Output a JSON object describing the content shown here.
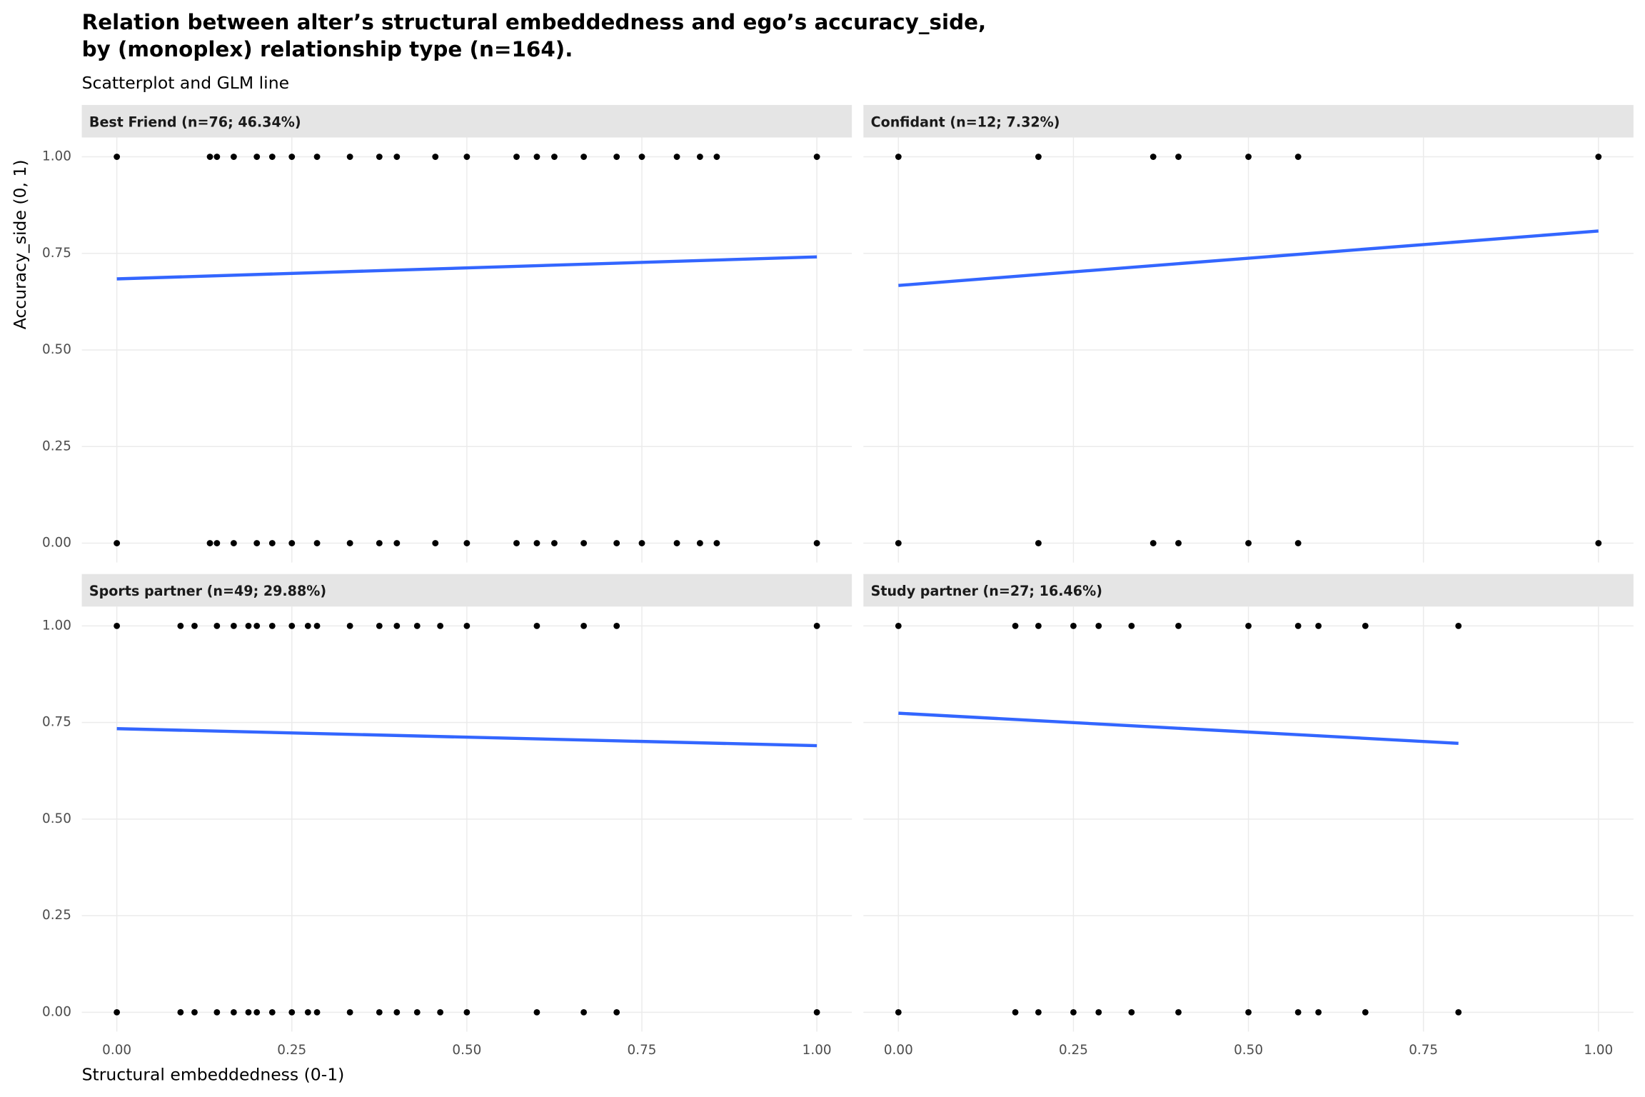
{
  "title": [
    "Relation between alter’s structural embeddedness and ego’s accuracy_side,",
    "by (monoplex) relationship type (n=164)."
  ],
  "subtitle": "Scatterplot and GLM line",
  "x_label": "Structural embeddedness (0-1)",
  "y_label": "Accuracy_side (0, 1)",
  "chart_data": [
    {
      "type": "scatter",
      "title": "Best Friend (n=76; 46.34%)",
      "color": "#000000",
      "x": [
        0,
        0.133,
        0.143,
        0.167,
        0.2,
        0.222,
        0.25,
        0.286,
        0.333,
        0.375,
        0.4,
        0.455,
        0.5,
        0.571,
        0.6,
        0.625,
        0.667,
        0.714,
        0.75,
        0.8,
        0.833,
        0.857,
        1,
        0,
        0.133,
        0.143,
        0.167,
        0.2,
        0.222,
        0.25,
        0.286,
        0.333,
        0.375,
        0.4,
        0.455,
        0.5,
        0.571,
        0.6,
        0.625,
        0.667,
        0.714,
        0.75,
        0.8,
        0.833,
        0.857,
        1
      ],
      "values": [
        1,
        1,
        1,
        1,
        1,
        1,
        1,
        1,
        1,
        1,
        1,
        1,
        1,
        1,
        1,
        1,
        1,
        1,
        1,
        1,
        1,
        1,
        1,
        0,
        0,
        0,
        0,
        0,
        0,
        0,
        0,
        0,
        0,
        0,
        0,
        0,
        0,
        0,
        0,
        0,
        0,
        0,
        0,
        0,
        0,
        0
      ],
      "fit": {
        "x": [
          0,
          1
        ],
        "values": [
          0.684,
          0.741
        ],
        "color": "#3366ff"
      },
      "xlim": [
        -0.05,
        1.05
      ],
      "ylim": [
        -0.05,
        1.05
      ],
      "xticks": [
        0,
        0.25,
        0.5,
        0.75,
        1
      ],
      "yticks": [
        {
          "value": 0,
          "label": "0.00"
        },
        {
          "value": 0.25,
          "label": "0.25"
        },
        {
          "value": 0.5,
          "label": "0.50"
        },
        {
          "value": 0.75,
          "label": "0.75"
        },
        {
          "value": 1,
          "label": "1.00"
        }
      ]
    },
    {
      "type": "scatter",
      "title": "Confidant (n=12; 7.32%)",
      "color": "#000000",
      "x": [
        0,
        0.2,
        0.364,
        0.4,
        0.5,
        0.571,
        1,
        0,
        0.2,
        0.364,
        0.4,
        0.5,
        0.571,
        1
      ],
      "values": [
        1,
        1,
        1,
        1,
        1,
        1,
        1,
        0,
        0,
        0,
        0,
        0,
        0,
        0
      ],
      "fit": {
        "x": [
          0,
          1
        ],
        "values": [
          0.667,
          0.808
        ],
        "color": "#3366ff"
      },
      "xlim": [
        -0.05,
        1.05
      ],
      "ylim": [
        -0.05,
        1.05
      ],
      "xticks": [
        0,
        0.25,
        0.5,
        0.75,
        1
      ],
      "yticks": [
        0,
        0.25,
        0.5,
        0.75,
        1
      ]
    },
    {
      "type": "scatter",
      "title": "Sports partner (n=49; 29.88%)",
      "color": "#000000",
      "x": [
        0,
        0.091,
        0.111,
        0.143,
        0.167,
        0.188,
        0.2,
        0.222,
        0.25,
        0.273,
        0.286,
        0.333,
        0.375,
        0.4,
        0.429,
        0.462,
        0.5,
        0.6,
        0.667,
        0.714,
        1,
        0,
        0.091,
        0.111,
        0.143,
        0.167,
        0.188,
        0.2,
        0.222,
        0.25,
        0.273,
        0.286,
        0.333,
        0.375,
        0.4,
        0.429,
        0.462,
        0.5,
        0.6,
        0.667,
        0.714,
        1
      ],
      "values": [
        1,
        1,
        1,
        1,
        1,
        1,
        1,
        1,
        1,
        1,
        1,
        1,
        1,
        1,
        1,
        1,
        1,
        1,
        1,
        1,
        1,
        0,
        0,
        0,
        0,
        0,
        0,
        0,
        0,
        0,
        0,
        0,
        0,
        0,
        0,
        0,
        0,
        0,
        0,
        0,
        0,
        0
      ],
      "fit": {
        "x": [
          0,
          1
        ],
        "values": [
          0.734,
          0.69
        ],
        "color": "#3366ff"
      },
      "xlim": [
        -0.05,
        1.05
      ],
      "ylim": [
        -0.05,
        1.05
      ],
      "xticks": [
        {
          "value": 0,
          "label": "0.00"
        },
        {
          "value": 0.25,
          "label": "0.25"
        },
        {
          "value": 0.5,
          "label": "0.50"
        },
        {
          "value": 0.75,
          "label": "0.75"
        },
        {
          "value": 1,
          "label": "1.00"
        }
      ],
      "yticks": [
        {
          "value": 0,
          "label": "0.00"
        },
        {
          "value": 0.25,
          "label": "0.25"
        },
        {
          "value": 0.5,
          "label": "0.50"
        },
        {
          "value": 0.75,
          "label": "0.75"
        },
        {
          "value": 1,
          "label": "1.00"
        }
      ]
    },
    {
      "type": "scatter",
      "title": "Study partner (n=27; 16.46%)",
      "color": "#000000",
      "x": [
        0,
        0.167,
        0.2,
        0.25,
        0.286,
        0.333,
        0.4,
        0.5,
        0.571,
        0.6,
        0.667,
        0.8,
        0,
        0.167,
        0.2,
        0.25,
        0.286,
        0.333,
        0.4,
        0.5,
        0.571,
        0.6,
        0.667,
        0.8
      ],
      "values": [
        1,
        1,
        1,
        1,
        1,
        1,
        1,
        1,
        1,
        1,
        1,
        1,
        0,
        0,
        0,
        0,
        0,
        0,
        0,
        0,
        0,
        0,
        0,
        0
      ],
      "fit": {
        "x": [
          0,
          0.8
        ],
        "values": [
          0.774,
          0.696
        ],
        "color": "#3366ff"
      },
      "xlim": [
        -0.05,
        1.05
      ],
      "ylim": [
        -0.05,
        1.05
      ],
      "xticks": [
        {
          "value": 0,
          "label": "0.00"
        },
        {
          "value": 0.25,
          "label": "0.25"
        },
        {
          "value": 0.5,
          "label": "0.50"
        },
        {
          "value": 0.75,
          "label": "0.75"
        },
        {
          "value": 1,
          "label": "1.00"
        }
      ],
      "yticks": [
        0,
        0.25,
        0.5,
        0.75,
        1
      ]
    }
  ]
}
